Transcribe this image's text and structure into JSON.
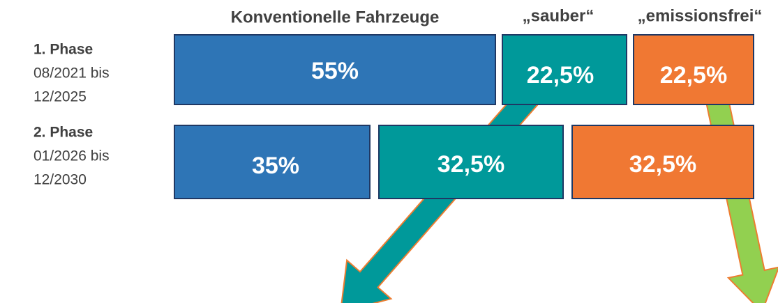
{
  "header": {
    "columns": [
      "Konventionelle Fahrzeuge",
      "„sauber“",
      "„emissionsfrei“"
    ]
  },
  "phases": [
    {
      "title": "1. Phase",
      "from": "08/2021 bis",
      "to": "12/2025",
      "shares": [
        "55%",
        "22,5%",
        "22,5%"
      ]
    },
    {
      "title": "2. Phase",
      "from": "01/2026 bis",
      "to": "12/2030",
      "shares": [
        "35%",
        "32,5%",
        "32,5%"
      ]
    }
  ]
}
